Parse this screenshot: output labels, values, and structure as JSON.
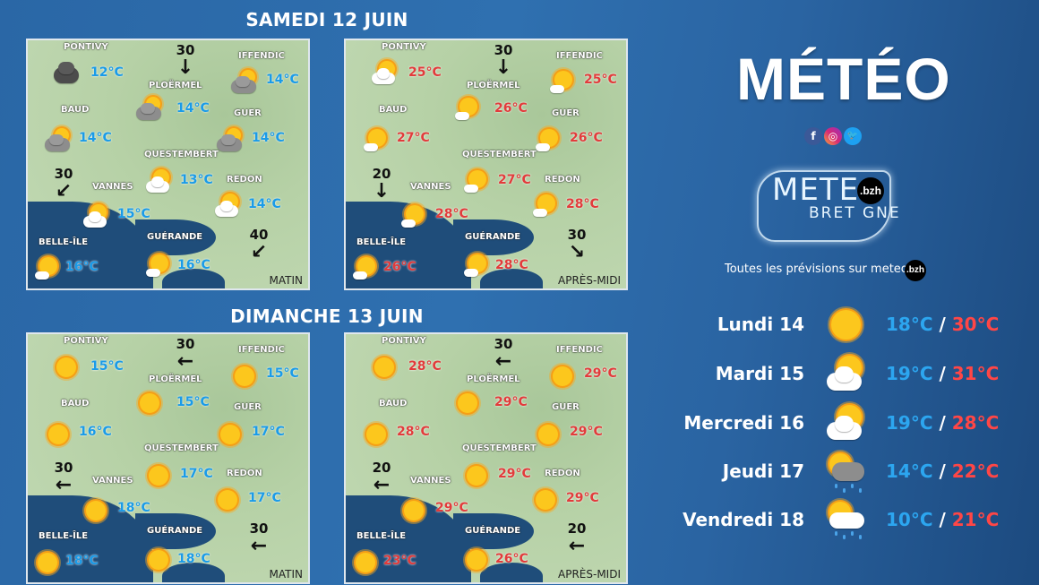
{
  "colors": {
    "cold": "#1a9be8",
    "warm": "#e23b3b",
    "background": "#2a67a6"
  },
  "days": [
    {
      "title": "SAMEDI 12 JUIN",
      "maps": [
        {
          "period": "MATIN",
          "tempClass": "cold",
          "cities": [
            {
              "name": "PONTIVY",
              "temp": "12°C",
              "icon": "dark-cloud"
            },
            {
              "name": "PLOËRMEL",
              "temp": "14°C",
              "icon": "grey-cloud-sun"
            },
            {
              "name": "IFFENDIC",
              "temp": "14°C",
              "icon": "grey-cloud-sun"
            },
            {
              "name": "BAUD",
              "temp": "14°C",
              "icon": "grey-cloud-sun"
            },
            {
              "name": "GUER",
              "temp": "14°C",
              "icon": "grey-cloud-sun"
            },
            {
              "name": "QUESTEMBERT",
              "temp": "13°C",
              "icon": "sun-cloud"
            },
            {
              "name": "REDON",
              "temp": "14°C",
              "icon": "sun-cloud"
            },
            {
              "name": "VANNES",
              "temp": "15°C",
              "icon": "sun-cloud"
            },
            {
              "name": "BELLE-ÎLE",
              "temp": "16°C",
              "icon": "sun-small-cloud"
            },
            {
              "name": "GUÉRANDE",
              "temp": "16°C",
              "icon": "sun-small-cloud"
            }
          ],
          "winds": [
            {
              "speed": "30",
              "dir": "south"
            },
            {
              "speed": "30",
              "dir": "south-west"
            },
            {
              "speed": "40",
              "dir": "south-west"
            }
          ]
        },
        {
          "period": "APRÈS-MIDI",
          "tempClass": "warm",
          "cities": [
            {
              "name": "PONTIVY",
              "temp": "25°C",
              "icon": "sun-cloud"
            },
            {
              "name": "PLOËRMEL",
              "temp": "26°C",
              "icon": "sun-small-cloud"
            },
            {
              "name": "IFFENDIC",
              "temp": "25°C",
              "icon": "sun-small-cloud"
            },
            {
              "name": "BAUD",
              "temp": "27°C",
              "icon": "sun-small-cloud"
            },
            {
              "name": "GUER",
              "temp": "26°C",
              "icon": "sun-small-cloud"
            },
            {
              "name": "QUESTEMBERT",
              "temp": "27°C",
              "icon": "sun-small-cloud"
            },
            {
              "name": "REDON",
              "temp": "28°C",
              "icon": "sun-small-cloud"
            },
            {
              "name": "VANNES",
              "temp": "28°C",
              "icon": "sun-small-cloud"
            },
            {
              "name": "BELLE-ÎLE",
              "temp": "26°C",
              "icon": "sun-small-cloud"
            },
            {
              "name": "GUÉRANDE",
              "temp": "28°C",
              "icon": "sun-small-cloud"
            }
          ],
          "winds": [
            {
              "speed": "30",
              "dir": "south"
            },
            {
              "speed": "20",
              "dir": "south"
            },
            {
              "speed": "30",
              "dir": "south-east"
            }
          ]
        }
      ]
    },
    {
      "title": "DIMANCHE 13 JUIN",
      "maps": [
        {
          "period": "MATIN",
          "tempClass": "cold",
          "cities": [
            {
              "name": "PONTIVY",
              "temp": "15°C",
              "icon": "sun"
            },
            {
              "name": "PLOËRMEL",
              "temp": "15°C",
              "icon": "sun"
            },
            {
              "name": "IFFENDIC",
              "temp": "15°C",
              "icon": "sun"
            },
            {
              "name": "BAUD",
              "temp": "16°C",
              "icon": "sun"
            },
            {
              "name": "GUER",
              "temp": "17°C",
              "icon": "sun"
            },
            {
              "name": "QUESTEMBERT",
              "temp": "17°C",
              "icon": "sun"
            },
            {
              "name": "REDON",
              "temp": "17°C",
              "icon": "sun"
            },
            {
              "name": "VANNES",
              "temp": "18°C",
              "icon": "sun"
            },
            {
              "name": "BELLE-ÎLE",
              "temp": "18°C",
              "icon": "sun"
            },
            {
              "name": "GUÉRANDE",
              "temp": "18°C",
              "icon": "sun"
            }
          ],
          "winds": [
            {
              "speed": "30",
              "dir": "west"
            },
            {
              "speed": "30",
              "dir": "west"
            },
            {
              "speed": "30",
              "dir": "west"
            }
          ]
        },
        {
          "period": "APRÈS-MIDI",
          "tempClass": "warm",
          "cities": [
            {
              "name": "PONTIVY",
              "temp": "28°C",
              "icon": "sun"
            },
            {
              "name": "PLOËRMEL",
              "temp": "29°C",
              "icon": "sun"
            },
            {
              "name": "IFFENDIC",
              "temp": "29°C",
              "icon": "sun"
            },
            {
              "name": "BAUD",
              "temp": "28°C",
              "icon": "sun"
            },
            {
              "name": "GUER",
              "temp": "29°C",
              "icon": "sun"
            },
            {
              "name": "QUESTEMBERT",
              "temp": "29°C",
              "icon": "sun"
            },
            {
              "name": "REDON",
              "temp": "29°C",
              "icon": "sun"
            },
            {
              "name": "VANNES",
              "temp": "29°C",
              "icon": "sun"
            },
            {
              "name": "BELLE-ÎLE",
              "temp": "23°C",
              "icon": "sun"
            },
            {
              "name": "GUÉRANDE",
              "temp": "26°C",
              "icon": "sun"
            }
          ],
          "winds": [
            {
              "speed": "30",
              "dir": "west"
            },
            {
              "speed": "20",
              "dir": "west"
            },
            {
              "speed": "20",
              "dir": "west"
            }
          ]
        }
      ]
    }
  ],
  "header": {
    "title": "MÉTÉO"
  },
  "social": {
    "facebook": "f",
    "instagram": "◎",
    "twitter": "🐦"
  },
  "brand": {
    "line1": "METE",
    "line2": "BRET GNE",
    "badge": ".bzh"
  },
  "tagline": {
    "text": "Toutes les prévisions sur meteo",
    "badge": ".bzh"
  },
  "forecast": [
    {
      "day": "Lundi 14",
      "icon": "sun",
      "min": "18°C",
      "max": "30°C"
    },
    {
      "day": "Mardi 15",
      "icon": "sun-cloud",
      "min": "19°C",
      "max": "31°C"
    },
    {
      "day": "Mercredi 16",
      "icon": "sun-cloud",
      "min": "19°C",
      "max": "28°C"
    },
    {
      "day": "Jeudi 17",
      "icon": "sun-grey-cloud-rain",
      "min": "14°C",
      "max": "22°C"
    },
    {
      "day": "Vendredi 18",
      "icon": "sun-cloud-rain",
      "min": "10°C",
      "max": "21°C"
    }
  ]
}
